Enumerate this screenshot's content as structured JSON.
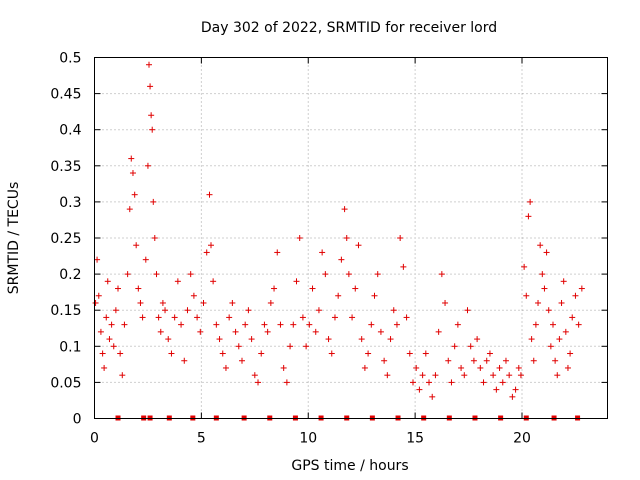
{
  "chart_data": {
    "type": "scatter",
    "title": "Day 302 of 2022, SRMTID for receiver lord",
    "xlabel": "GPS time / hours",
    "ylabel": "SRMTID / TECUs",
    "xlim": [
      0,
      24
    ],
    "ylim": [
      0,
      0.5
    ],
    "grid": true,
    "marker": "+",
    "marker_color": "#e00000",
    "x_ticks": [
      0,
      5,
      10,
      15,
      20
    ],
    "x_tick_labels": [
      "0",
      "5",
      "10",
      "15",
      "20"
    ],
    "y_ticks": [
      0,
      0.05,
      0.1,
      0.15,
      0.2,
      0.25,
      0.3,
      0.35,
      0.4,
      0.45,
      0.5
    ],
    "y_tick_labels": [
      "0",
      "0.05",
      "0.1",
      "0.15",
      "0.2",
      "0.25",
      "0.3",
      "0.35",
      "0.4",
      "0.45",
      "0.5"
    ],
    "zero_markers_x": [
      1.1,
      2.3,
      2.6,
      3.5,
      4.6,
      5.7,
      7.0,
      8.2,
      9.4,
      10.6,
      11.8,
      13.0,
      14.2,
      15.4,
      16.6,
      17.8,
      19.0,
      20.2,
      21.5,
      22.6
    ],
    "series": [
      {
        "name": "SRMTID",
        "points": [
          [
            0.05,
            0.16
          ],
          [
            0.12,
            0.22
          ],
          [
            0.2,
            0.17
          ],
          [
            0.3,
            0.12
          ],
          [
            0.38,
            0.09
          ],
          [
            0.45,
            0.07
          ],
          [
            0.55,
            0.14
          ],
          [
            0.62,
            0.19
          ],
          [
            0.7,
            0.11
          ],
          [
            0.8,
            0.13
          ],
          [
            0.9,
            0.1
          ],
          [
            1.0,
            0.15
          ],
          [
            1.1,
            0.18
          ],
          [
            1.2,
            0.09
          ],
          [
            1.3,
            0.06
          ],
          [
            1.4,
            0.13
          ],
          [
            1.55,
            0.2
          ],
          [
            1.65,
            0.29
          ],
          [
            1.72,
            0.36
          ],
          [
            1.8,
            0.34
          ],
          [
            1.88,
            0.31
          ],
          [
            1.95,
            0.24
          ],
          [
            2.05,
            0.18
          ],
          [
            2.15,
            0.16
          ],
          [
            2.25,
            0.14
          ],
          [
            2.4,
            0.22
          ],
          [
            2.5,
            0.35
          ],
          [
            2.55,
            0.49
          ],
          [
            2.6,
            0.46
          ],
          [
            2.65,
            0.42
          ],
          [
            2.7,
            0.4
          ],
          [
            2.75,
            0.3
          ],
          [
            2.82,
            0.25
          ],
          [
            2.9,
            0.2
          ],
          [
            3.0,
            0.14
          ],
          [
            3.1,
            0.12
          ],
          [
            3.2,
            0.16
          ],
          [
            3.3,
            0.15
          ],
          [
            3.45,
            0.11
          ],
          [
            3.6,
            0.09
          ],
          [
            3.75,
            0.14
          ],
          [
            3.9,
            0.19
          ],
          [
            4.05,
            0.13
          ],
          [
            4.2,
            0.08
          ],
          [
            4.35,
            0.15
          ],
          [
            4.5,
            0.2
          ],
          [
            4.65,
            0.17
          ],
          [
            4.8,
            0.14
          ],
          [
            4.95,
            0.12
          ],
          [
            5.1,
            0.16
          ],
          [
            5.25,
            0.23
          ],
          [
            5.38,
            0.31
          ],
          [
            5.45,
            0.24
          ],
          [
            5.55,
            0.19
          ],
          [
            5.7,
            0.13
          ],
          [
            5.85,
            0.11
          ],
          [
            6.0,
            0.09
          ],
          [
            6.15,
            0.07
          ],
          [
            6.3,
            0.14
          ],
          [
            6.45,
            0.16
          ],
          [
            6.6,
            0.12
          ],
          [
            6.75,
            0.1
          ],
          [
            6.9,
            0.08
          ],
          [
            7.05,
            0.13
          ],
          [
            7.2,
            0.15
          ],
          [
            7.35,
            0.11
          ],
          [
            7.5,
            0.06
          ],
          [
            7.65,
            0.05
          ],
          [
            7.8,
            0.09
          ],
          [
            7.95,
            0.13
          ],
          [
            8.1,
            0.12
          ],
          [
            8.25,
            0.16
          ],
          [
            8.4,
            0.18
          ],
          [
            8.55,
            0.23
          ],
          [
            8.7,
            0.13
          ],
          [
            8.85,
            0.07
          ],
          [
            9.0,
            0.05
          ],
          [
            9.15,
            0.1
          ],
          [
            9.3,
            0.13
          ],
          [
            9.45,
            0.19
          ],
          [
            9.6,
            0.25
          ],
          [
            9.75,
            0.14
          ],
          [
            9.9,
            0.1
          ],
          [
            10.05,
            0.13
          ],
          [
            10.2,
            0.18
          ],
          [
            10.35,
            0.12
          ],
          [
            10.5,
            0.15
          ],
          [
            10.65,
            0.23
          ],
          [
            10.8,
            0.2
          ],
          [
            10.95,
            0.11
          ],
          [
            11.1,
            0.09
          ],
          [
            11.25,
            0.14
          ],
          [
            11.4,
            0.17
          ],
          [
            11.55,
            0.22
          ],
          [
            11.7,
            0.29
          ],
          [
            11.8,
            0.25
          ],
          [
            11.9,
            0.2
          ],
          [
            12.05,
            0.14
          ],
          [
            12.2,
            0.18
          ],
          [
            12.35,
            0.24
          ],
          [
            12.5,
            0.11
          ],
          [
            12.65,
            0.07
          ],
          [
            12.8,
            0.09
          ],
          [
            12.95,
            0.13
          ],
          [
            13.1,
            0.17
          ],
          [
            13.25,
            0.2
          ],
          [
            13.4,
            0.12
          ],
          [
            13.55,
            0.08
          ],
          [
            13.7,
            0.06
          ],
          [
            13.85,
            0.11
          ],
          [
            14.0,
            0.15
          ],
          [
            14.15,
            0.13
          ],
          [
            14.3,
            0.25
          ],
          [
            14.45,
            0.21
          ],
          [
            14.6,
            0.14
          ],
          [
            14.75,
            0.09
          ],
          [
            14.9,
            0.05
          ],
          [
            15.05,
            0.07
          ],
          [
            15.2,
            0.04
          ],
          [
            15.35,
            0.06
          ],
          [
            15.5,
            0.09
          ],
          [
            15.65,
            0.05
          ],
          [
            15.8,
            0.03
          ],
          [
            15.95,
            0.06
          ],
          [
            16.1,
            0.12
          ],
          [
            16.25,
            0.2
          ],
          [
            16.4,
            0.16
          ],
          [
            16.55,
            0.08
          ],
          [
            16.7,
            0.05
          ],
          [
            16.85,
            0.1
          ],
          [
            17.0,
            0.13
          ],
          [
            17.15,
            0.07
          ],
          [
            17.3,
            0.06
          ],
          [
            17.45,
            0.15
          ],
          [
            17.6,
            0.1
          ],
          [
            17.75,
            0.08
          ],
          [
            17.9,
            0.11
          ],
          [
            18.05,
            0.07
          ],
          [
            18.2,
            0.05
          ],
          [
            18.35,
            0.08
          ],
          [
            18.5,
            0.09
          ],
          [
            18.65,
            0.06
          ],
          [
            18.8,
            0.04
          ],
          [
            18.95,
            0.07
          ],
          [
            19.1,
            0.05
          ],
          [
            19.25,
            0.08
          ],
          [
            19.4,
            0.06
          ],
          [
            19.55,
            0.03
          ],
          [
            19.7,
            0.04
          ],
          [
            19.85,
            0.07
          ],
          [
            19.95,
            0.06
          ],
          [
            20.1,
            0.21
          ],
          [
            20.2,
            0.17
          ],
          [
            20.3,
            0.28
          ],
          [
            20.38,
            0.3
          ],
          [
            20.45,
            0.11
          ],
          [
            20.55,
            0.08
          ],
          [
            20.65,
            0.13
          ],
          [
            20.75,
            0.16
          ],
          [
            20.85,
            0.24
          ],
          [
            20.95,
            0.2
          ],
          [
            21.05,
            0.18
          ],
          [
            21.15,
            0.23
          ],
          [
            21.25,
            0.15
          ],
          [
            21.35,
            0.1
          ],
          [
            21.45,
            0.13
          ],
          [
            21.55,
            0.08
          ],
          [
            21.65,
            0.06
          ],
          [
            21.75,
            0.11
          ],
          [
            21.85,
            0.16
          ],
          [
            21.95,
            0.19
          ],
          [
            22.05,
            0.12
          ],
          [
            22.15,
            0.07
          ],
          [
            22.25,
            0.09
          ],
          [
            22.35,
            0.14
          ],
          [
            22.5,
            0.17
          ],
          [
            22.65,
            0.13
          ],
          [
            22.8,
            0.18
          ]
        ]
      }
    ]
  }
}
